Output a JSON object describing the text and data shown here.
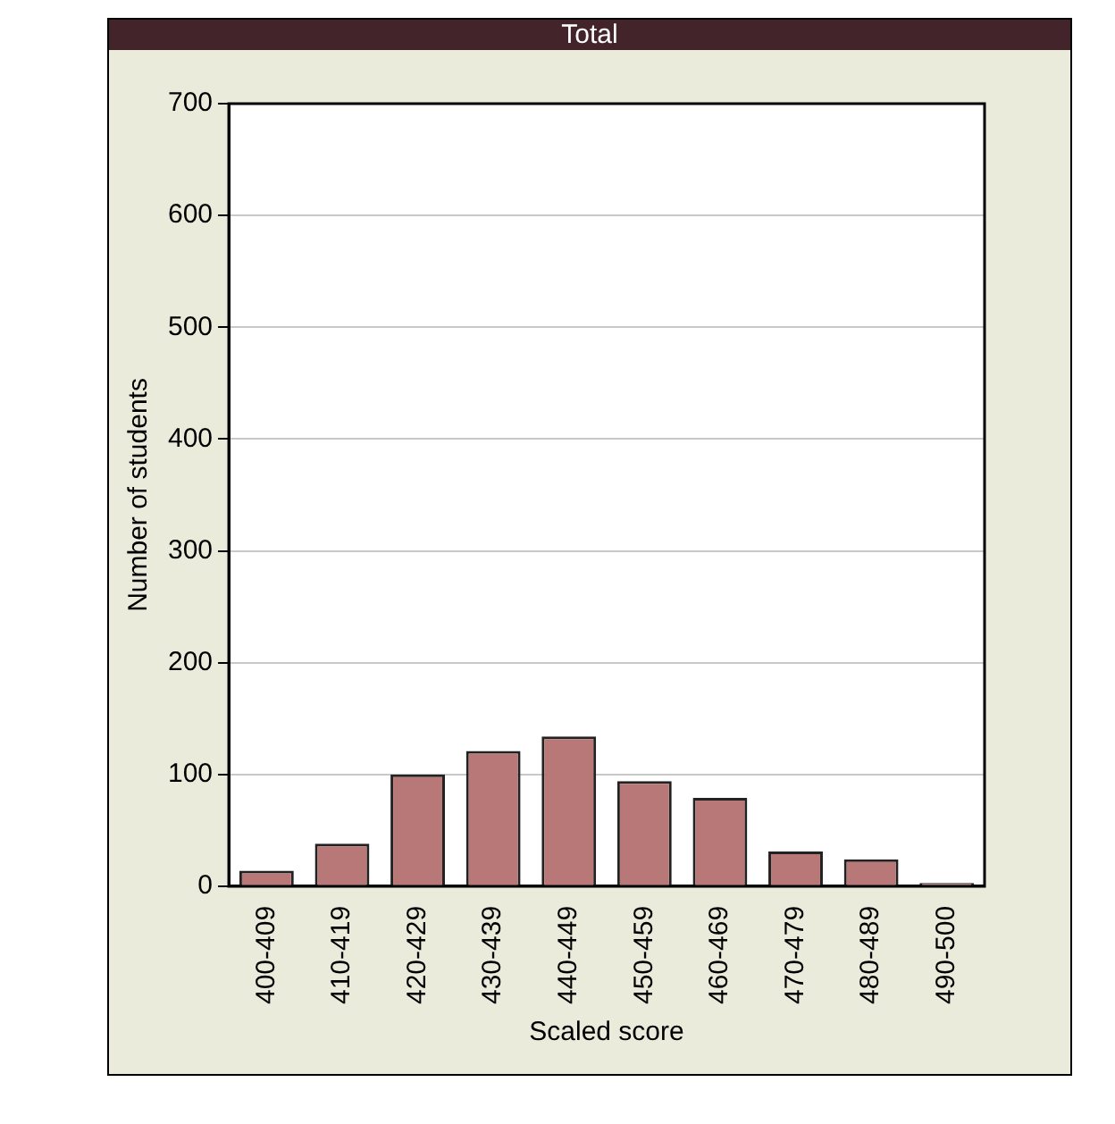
{
  "chart_data": {
    "type": "bar",
    "title": "Total",
    "xlabel": "Scaled score",
    "ylabel": "Number of students",
    "categories": [
      "400-409",
      "410-419",
      "420-429",
      "430-439",
      "440-449",
      "450-459",
      "460-469",
      "470-479",
      "480-489",
      "490-500"
    ],
    "values": [
      14,
      38,
      100,
      121,
      134,
      94,
      79,
      31,
      24,
      3
    ],
    "color": "#b87878",
    "ylim": [
      0,
      700
    ],
    "yticks": [
      0,
      100,
      200,
      300,
      400,
      500,
      600,
      700
    ],
    "grid": "y",
    "legend": false
  }
}
